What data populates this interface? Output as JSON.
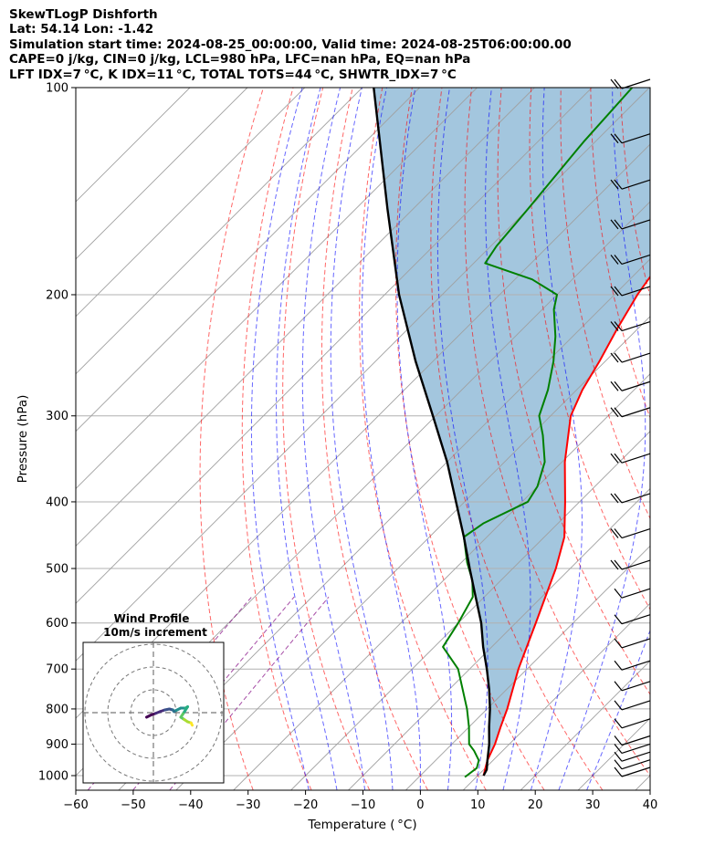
{
  "header": {
    "line1": "SkewTLogP Dishforth",
    "line2": "Lat: 54.14   Lon: -1.42",
    "line3": "Simulation start time: 2024-08-25_00:00:00, Valid time: 2024-08-25T06:00:00.00",
    "line4": "CAPE=0 j/kg, CIN=0 j/kg, LCL=980 hPa, LFC=nan hPa, EQ=nan hPa",
    "line5": "LFT IDX=7 °C, K IDX=11 °C, TOTAL TOTS=44 °C, SHWTR_IDX=7 °C"
  },
  "chart_data": {
    "type": "line",
    "chart_kind": "skew-T log-p",
    "xlabel": "Temperature ( °C)",
    "ylabel": "Pressure (hPa)",
    "xlim": [
      -60,
      40
    ],
    "ylim": [
      1050,
      100
    ],
    "x_scale": "skewed",
    "y_scale": "log",
    "x_ticks": [
      "−60",
      "−50",
      "−40",
      "−30",
      "−20",
      "−10",
      "0",
      "10",
      "20",
      "30",
      "40"
    ],
    "y_ticks": [
      "100",
      "200",
      "300",
      "400",
      "500",
      "600",
      "700",
      "800",
      "900",
      "1000"
    ],
    "grid": true,
    "series": [
      {
        "role": "temperature",
        "color": "#ff0000",
        "points": [
          [
            1000,
            11
          ],
          [
            975,
            10
          ],
          [
            950,
            9
          ],
          [
            900,
            7.5
          ],
          [
            850,
            5.5
          ],
          [
            800,
            3.5
          ],
          [
            700,
            -1.5
          ],
          [
            600,
            -6.5
          ],
          [
            500,
            -12.5
          ],
          [
            450,
            -16.5
          ],
          [
            400,
            -22.5
          ],
          [
            350,
            -29.5
          ],
          [
            300,
            -36.5
          ],
          [
            275,
            -39
          ],
          [
            250,
            -41
          ],
          [
            225,
            -43.5
          ],
          [
            200,
            -46
          ],
          [
            175,
            -48
          ],
          [
            150,
            -50.5
          ],
          [
            125,
            -54
          ],
          [
            100,
            -57.5
          ]
        ]
      },
      {
        "role": "dewpoint",
        "color": "#008000",
        "points": [
          [
            1005,
            8
          ],
          [
            975,
            8.5
          ],
          [
            950,
            7.5
          ],
          [
            920,
            5
          ],
          [
            900,
            3
          ],
          [
            850,
            0
          ],
          [
            800,
            -3.5
          ],
          [
            700,
            -12
          ],
          [
            650,
            -18.5
          ],
          [
            600,
            -20
          ],
          [
            550,
            -22
          ],
          [
            520,
            -25
          ],
          [
            490,
            -29
          ],
          [
            450,
            -34
          ],
          [
            430,
            -33
          ],
          [
            400,
            -29
          ],
          [
            380,
            -30
          ],
          [
            350,
            -33
          ],
          [
            320,
            -38
          ],
          [
            300,
            -42
          ],
          [
            275,
            -45
          ],
          [
            250,
            -49
          ],
          [
            230,
            -53
          ],
          [
            210,
            -58
          ],
          [
            200,
            -60
          ],
          [
            190,
            -67
          ],
          [
            180,
            -78
          ],
          [
            170,
            -79
          ],
          [
            150,
            -80
          ],
          [
            120,
            -82
          ],
          [
            100,
            -83
          ]
        ]
      },
      {
        "role": "parcel",
        "color": "#000000",
        "points": [
          [
            1000,
            11
          ],
          [
            980,
            10.5
          ],
          [
            950,
            9
          ],
          [
            900,
            6.5
          ],
          [
            850,
            3.5
          ],
          [
            800,
            0.5
          ],
          [
            750,
            -3
          ],
          [
            700,
            -7
          ],
          [
            650,
            -11.5
          ],
          [
            600,
            -16
          ],
          [
            550,
            -21.5
          ],
          [
            500,
            -27.5
          ],
          [
            450,
            -34
          ],
          [
            400,
            -41.5
          ],
          [
            350,
            -50
          ],
          [
            300,
            -60.5
          ],
          [
            250,
            -73
          ],
          [
            200,
            -87.5
          ],
          [
            150,
            -104.5
          ],
          [
            100,
            -128
          ]
        ]
      }
    ],
    "shading": {
      "between": [
        "temperature",
        "parcel"
      ],
      "color": "#a3c6de"
    },
    "wind_barbs": {
      "color": "#000000",
      "pressures": [
        100,
        120,
        140,
        160,
        180,
        200,
        225,
        250,
        275,
        300,
        350,
        400,
        450,
        500,
        550,
        600,
        650,
        700,
        750,
        800,
        850,
        900,
        925,
        950,
        975,
        1000
      ],
      "speed_kt": [
        15,
        15,
        15,
        15,
        15,
        15,
        15,
        15,
        15,
        15,
        15,
        15,
        15,
        15,
        10,
        10,
        10,
        10,
        10,
        10,
        10,
        10,
        10,
        10,
        10,
        10
      ]
    },
    "reference_lines": {
      "isotherms_color": "#a0a0a0",
      "dry_adiabats_color": "#ff0000",
      "moist_adiabats_color": "#0000ff",
      "mixing_ratio_color": "#800080"
    },
    "inset": {
      "title": "Wind Profile",
      "subtitle": "10m/s increment",
      "type": "hodograph",
      "ring_increment_ms": 10,
      "rings": [
        10,
        20,
        30
      ],
      "points_uv": [
        [
          -3,
          -2
        ],
        [
          -1,
          -1
        ],
        [
          1,
          -0.3
        ],
        [
          3,
          0.5
        ],
        [
          5,
          1.2
        ],
        [
          7,
          1.6
        ],
        [
          8.5,
          1.2
        ],
        [
          9,
          0.5
        ],
        [
          10,
          1
        ],
        [
          12,
          2
        ],
        [
          14,
          2
        ],
        [
          15,
          2.6
        ],
        [
          13,
          -0.5
        ],
        [
          12,
          -2
        ],
        [
          13.5,
          -3
        ],
        [
          15,
          -4
        ],
        [
          16.5,
          -4.5
        ],
        [
          17,
          -5.5
        ]
      ],
      "colormap": "viridis"
    }
  }
}
